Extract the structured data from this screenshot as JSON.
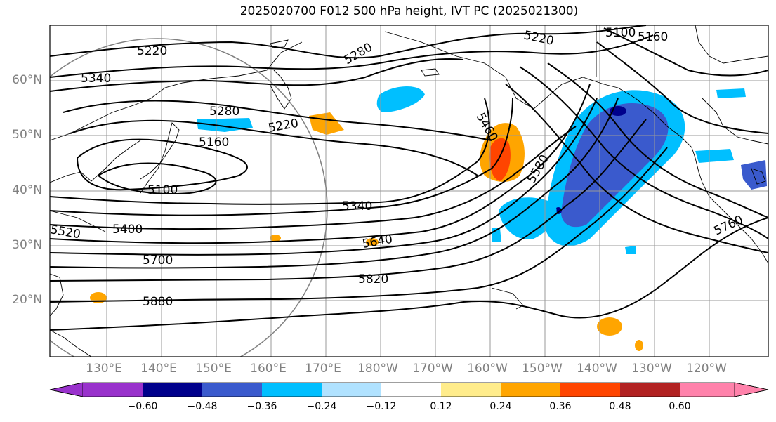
{
  "title": "2025020700 F012 500 hPa height, IVT PC (2025021300)",
  "latitude_labels": [
    "60°N",
    "50°N",
    "40°N",
    "30°N",
    "20°N"
  ],
  "longitude_labels": [
    "130°E",
    "140°E",
    "150°E",
    "160°E",
    "170°E",
    "180°W",
    "170°W",
    "160°W",
    "150°W",
    "140°W",
    "130°W",
    "120°W"
  ],
  "contour_labels": [
    "5220",
    "5340",
    "5280",
    "5220",
    "5160",
    "5100",
    "5400",
    "5520",
    "5280",
    "5220",
    "5100",
    "5160",
    "5460",
    "5580",
    "5340",
    "5640",
    "5700",
    "5820",
    "5880",
    "5760"
  ],
  "colorbar": {
    "ticks": [
      "−0.60",
      "−0.48",
      "−0.36",
      "−0.24",
      "−0.12",
      "0.12",
      "0.24",
      "0.36",
      "0.48",
      "0.60"
    ],
    "colors": [
      "#9932cc",
      "#00008b",
      "#3a5acd",
      "#00bfff",
      "#b0e2ff",
      "#ffffff",
      "#ffec8b",
      "#ffa500",
      "#ff4500",
      "#b22222",
      "#ff82ab"
    ]
  }
}
